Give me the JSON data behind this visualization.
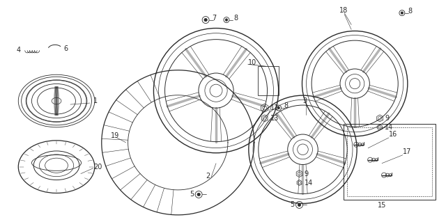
{
  "figsize": [
    6.4,
    3.19
  ],
  "dpi": 100,
  "bg_color": "#ffffff",
  "image_data": "target_image"
}
